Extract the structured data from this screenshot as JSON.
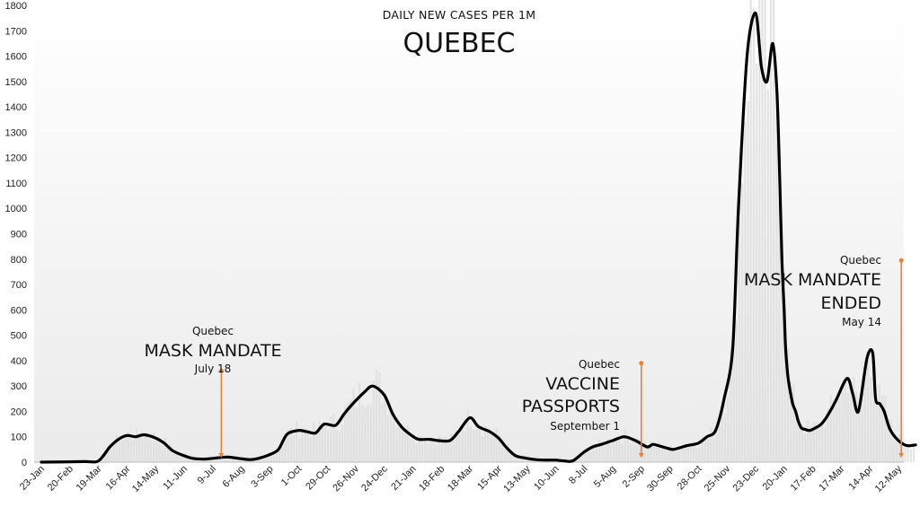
{
  "chart_data": {
    "type": "line",
    "subtitle": "DAILY NEW CASES PER 1M",
    "title": "QUEBEC",
    "ylim": [
      0,
      1800
    ],
    "yticks": [
      0,
      100,
      200,
      300,
      400,
      500,
      600,
      700,
      800,
      900,
      1000,
      1100,
      1200,
      1300,
      1400,
      1500,
      1600,
      1700,
      1800
    ],
    "xticks": [
      "23-Jan",
      "20-Feb",
      "19-Mar",
      "16-Apr",
      "14-May",
      "11-Jun",
      "9-Jul",
      "6-Aug",
      "3-Sep",
      "1-Oct",
      "29-Oct",
      "26-Nov",
      "24-Dec",
      "21-Jan",
      "18-Feb",
      "18-Mar",
      "15-Apr",
      "13-May",
      "10-Jun",
      "8-Jul",
      "5-Aug",
      "2-Sep",
      "30-Sep",
      "28-Oct",
      "25-Nov",
      "23-Dec",
      "20-Jan",
      "17-Feb",
      "17-Mar",
      "14-Apr",
      "12-May"
    ],
    "grid": false,
    "series": [
      {
        "color": "#000000",
        "x_tick_index": [
          0,
          1.5,
          2.0,
          2.4,
          2.7,
          3.0,
          3.3,
          3.6,
          4.0,
          4.3,
          4.6,
          5.0,
          5.3,
          5.7,
          6.0,
          6.5,
          6.9,
          7.3,
          7.6,
          8.0,
          8.3,
          8.6,
          9.0,
          9.3,
          9.6,
          9.9,
          10.3,
          10.6,
          10.9,
          11.3,
          11.6,
          12.0,
          12.3,
          12.6,
          12.9,
          13.2,
          13.6,
          13.9,
          14.3,
          14.6,
          15.0,
          15.3,
          15.7,
          16.0,
          16.3,
          16.6,
          17.0,
          17.3,
          17.6,
          18.0,
          18.3,
          18.6,
          19.0,
          19.3,
          19.6,
          20.0,
          20.4,
          20.8,
          21.2,
          21.4,
          21.6,
          21.9,
          22.1,
          22.3,
          22.6,
          23.0,
          23.3,
          23.6,
          23.9,
          24.2,
          24.4,
          24.7,
          25.0,
          25.2,
          25.4,
          25.6,
          25.75,
          25.85,
          25.92,
          26.0,
          26.05,
          26.12,
          26.18,
          26.3,
          26.4,
          26.5,
          26.6,
          26.7,
          26.9,
          27.1,
          27.3,
          27.5,
          27.8,
          28.2,
          28.4,
          28.6,
          28.9,
          29.1,
          29.2,
          29.35,
          29.5,
          29.7,
          30.0,
          30.3,
          30.6
        ],
        "y": [
          0,
          2,
          5,
          60,
          90,
          105,
          100,
          108,
          95,
          75,
          45,
          25,
          15,
          12,
          15,
          20,
          15,
          10,
          15,
          30,
          50,
          110,
          125,
          120,
          115,
          150,
          145,
          190,
          230,
          275,
          300,
          265,
          190,
          140,
          110,
          90,
          90,
          85,
          85,
          120,
          175,
          140,
          120,
          95,
          55,
          25,
          15,
          10,
          8,
          8,
          5,
          5,
          40,
          60,
          70,
          85,
          100,
          85,
          60,
          70,
          65,
          55,
          50,
          55,
          65,
          75,
          100,
          125,
          250,
          450,
          1000,
          1600,
          1770,
          1560,
          1500,
          1650,
          1450,
          1100,
          800,
          600,
          450,
          350,
          300,
          230,
          200,
          160,
          135,
          130,
          125,
          135,
          150,
          180,
          240,
          330,
          270,
          200,
          410,
          430,
          250,
          230,
          200,
          130,
          85,
          65,
          68
        ]
      }
    ],
    "annotations": [
      {
        "region": "Quebec",
        "event": [
          "MASK MANDATE"
        ],
        "date": "July 18",
        "x_tick_index": 6.3,
        "y_top": 360
      },
      {
        "region": "Quebec",
        "event": [
          "VACCINE",
          "PASSPORTS"
        ],
        "date": "September 1",
        "x_tick_index": 21.0,
        "y_top": 390
      },
      {
        "region": "Quebec",
        "event": [
          "MASK MANDATE",
          "ENDED"
        ],
        "date": "May 14",
        "x_tick_index": 30.1,
        "y_top": 795
      }
    ],
    "annotation_color": "#e8833a"
  }
}
